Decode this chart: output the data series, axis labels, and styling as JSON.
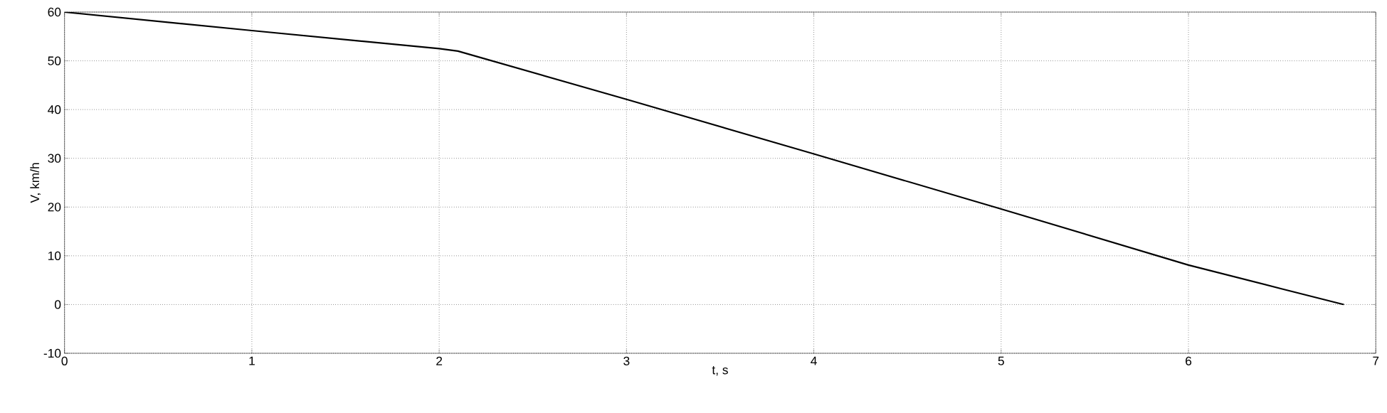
{
  "chart_data": {
    "type": "line",
    "xlabel": "t, s",
    "ylabel": "V, km/h",
    "x": [
      0,
      1,
      2,
      2.1,
      3,
      4,
      5,
      6,
      6.5,
      6.83
    ],
    "values": [
      60,
      56.2,
      52.5,
      52,
      42.1,
      30.9,
      19.6,
      8.1,
      3.2,
      0
    ],
    "color": "#000000",
    "xlim": [
      0,
      7
    ],
    "ylim": [
      -10,
      60
    ],
    "xticks": [
      0,
      1,
      2,
      3,
      4,
      5,
      6,
      7
    ],
    "yticks": [
      -10,
      0,
      10,
      20,
      30,
      40,
      50,
      60
    ],
    "grid": true
  }
}
